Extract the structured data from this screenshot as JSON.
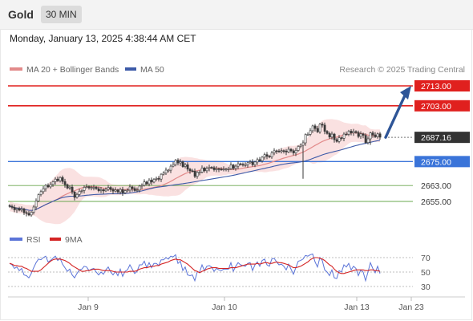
{
  "header": {
    "instrument": "Gold",
    "timeframe": "30 MIN"
  },
  "timestamp": "Monday, January 13, 2025 4:38:44 AM CET",
  "legend": {
    "ma_bb": "MA 20 + Bollinger Bands",
    "ma50": "MA 50",
    "credit": "Research © 2025 Trading Central"
  },
  "rsi_legend": {
    "rsi": "RSI",
    "ma9": "9MA"
  },
  "colors": {
    "resistance": "#e0201e",
    "support": "#3a74d9",
    "target": "#6aa84f",
    "ma20": "#e28a8a",
    "band_fill": "#f6c9c9",
    "ma50": "#3d5aa8",
    "candle": "#3a3a3a",
    "arrow": "#2e5597",
    "rsi": "#5b74d8",
    "rsi_ma": "#d42424",
    "current": "#333333"
  },
  "chart_data": {
    "type": "candlestick",
    "instrument": "Gold",
    "timeframe": "30 MIN",
    "x_tick_labels": [
      "Jan 9",
      "Jan 10",
      "Jan 13",
      "Jan 23"
    ],
    "ylim": [
      2648,
      2718
    ],
    "price_levels": [
      {
        "value": 2713.0,
        "label": "2713.00",
        "kind": "resistance"
      },
      {
        "value": 2703.0,
        "label": "2703.00",
        "kind": "resistance"
      },
      {
        "value": 2687.16,
        "label": "2687.16",
        "kind": "current"
      },
      {
        "value": 2675.0,
        "label": "2675.00",
        "kind": "pivot"
      },
      {
        "value": 2663.0,
        "label": "2663.00",
        "kind": "support"
      },
      {
        "value": 2655.0,
        "label": "2655.00",
        "kind": "support"
      }
    ],
    "closes": [
      2652.5,
      2652,
      2650.8,
      2651.4,
      2650.6,
      2651.2,
      2649.4,
      2649,
      2648.2,
      2649.6,
      2652.2,
      2655.2,
      2658.4,
      2659.9,
      2661.4,
      2663.1,
      2662.3,
      2663.5,
      2664.9,
      2666.2,
      2665.4,
      2667,
      2665,
      2663.4,
      2661.7,
      2662.2,
      2659.7,
      2657,
      2658.5,
      2660.1,
      2660.5,
      2662.1,
      2662.4,
      2661.8,
      2662,
      2662.1,
      2661.4,
      2660.4,
      2660.9,
      2660.3,
      2661.1,
      2662,
      2661,
      2660.2,
      2660.8,
      2659.8,
      2661,
      2659.3,
      2660.4,
      2660.7,
      2662.3,
      2661.5,
      2660.5,
      2660.7,
      2662.7,
      2663.1,
      2664.8,
      2663.8,
      2665.7,
      2664.7,
      2666.1,
      2666.5,
      2666.2,
      2668.6,
      2669.2,
      2670.7,
      2670.7,
      2672.7,
      2673.5,
      2675.7,
      2674.3,
      2674.9,
      2672.5,
      2673.4,
      2671.2,
      2670.4,
      2670.2,
      2667.6,
      2669.6,
      2669.7,
      2671.8,
      2670.4,
      2671.6,
      2672.1,
      2671.9,
      2670.9,
      2671.4,
      2671.2,
      2671,
      2671.3,
      2671.3,
      2671.4,
      2673.3,
      2671.6,
      2672.7,
      2673.9,
      2673.6,
      2673.4,
      2673.4,
      2674.4,
      2674.9,
      2673.4,
      2674.8,
      2676,
      2675.4,
      2677.2,
      2678.5,
      2677.7,
      2677.3,
      2679.4,
      2680.4,
      2680.3,
      2680,
      2680.5,
      2680.3,
      2679.8,
      2681.2,
      2680.4,
      2679.3,
      2680.6,
      2682.6,
      2683.2,
      2684.4,
      2688.5,
      2688.7,
      2690.5,
      2692.9,
      2691.6,
      2689.9,
      2693.8,
      2693.3,
      2690.2,
      2689.1,
      2687.3,
      2688.8,
      2686,
      2685.1,
      2687,
      2686.7,
      2688.8,
      2688.7,
      2690.3,
      2689.4,
      2690.1,
      2689.6,
      2687.6,
      2688.9,
      2688.2,
      2684.5,
      2686.4,
      2689.4,
      2688.4,
      2687.4,
      2688.9,
      2687.2
    ],
    "rsi": {
      "levels": [
        70,
        50,
        30
      ],
      "ylim": [
        25,
        78
      ],
      "values": [
        62,
        60,
        55,
        57,
        52,
        55,
        46,
        45,
        42,
        48,
        56,
        63,
        68,
        67,
        70,
        72,
        64,
        66,
        69,
        72,
        66,
        69,
        61,
        56,
        51,
        54,
        46,
        42,
        48,
        53,
        54,
        58,
        57,
        52,
        54,
        55,
        50,
        46,
        50,
        47,
        53,
        57,
        50,
        46,
        51,
        45,
        54,
        44,
        51,
        53,
        60,
        54,
        48,
        51,
        60,
        60,
        65,
        56,
        63,
        56,
        62,
        62,
        59,
        67,
        67,
        70,
        68,
        72,
        71,
        74,
        62,
        65,
        52,
        57,
        46,
        45,
        46,
        38,
        50,
        50,
        60,
        52,
        58,
        59,
        57,
        51,
        55,
        53,
        52,
        54,
        54,
        54,
        63,
        51,
        58,
        63,
        60,
        59,
        58,
        62,
        63,
        52,
        60,
        64,
        58,
        66,
        68,
        60,
        58,
        68,
        69,
        64,
        60,
        61,
        58,
        53,
        61,
        54,
        47,
        56,
        65,
        66,
        68,
        73,
        72,
        74,
        75,
        64,
        57,
        70,
        66,
        53,
        50,
        45,
        53,
        42,
        41,
        52,
        50,
        60,
        57,
        62,
        53,
        58,
        55,
        45,
        53,
        50,
        38,
        50,
        63,
        55,
        49,
        58,
        48
      ],
      "ma9": [
        62,
        61,
        59,
        59,
        58,
        58,
        56,
        55,
        53,
        51,
        51,
        51,
        51,
        53,
        56,
        59,
        62,
        65,
        67,
        68,
        68,
        68,
        67,
        66,
        64,
        62,
        59,
        57,
        55,
        53,
        51,
        51,
        52,
        52,
        53,
        54,
        54,
        54,
        53,
        52,
        52,
        52,
        52,
        51,
        50,
        50,
        50,
        50,
        50,
        50,
        51,
        51,
        51,
        52,
        54,
        55,
        56,
        56,
        57,
        58,
        58,
        59,
        59,
        61,
        62,
        63,
        64,
        66,
        67,
        68,
        67,
        67,
        65,
        63,
        61,
        58,
        55,
        52,
        51,
        49,
        51,
        52,
        54,
        55,
        56,
        56,
        56,
        55,
        55,
        55,
        55,
        55,
        56,
        56,
        56,
        57,
        58,
        59,
        60,
        61,
        61,
        61,
        61,
        62,
        61,
        62,
        63,
        63,
        62,
        62,
        63,
        64,
        63,
        63,
        62,
        61,
        60,
        58,
        56,
        56,
        57,
        58,
        60,
        62,
        64,
        67,
        69,
        70,
        70,
        69,
        68,
        66,
        63,
        60,
        58,
        54,
        51,
        49,
        48,
        48,
        49,
        50,
        51,
        52,
        53,
        53,
        53,
        53,
        52,
        52,
        53,
        53,
        52,
        52,
        51
      ]
    },
    "arrow": {
      "from_value": 2687.16,
      "to_value": 2713.0
    }
  }
}
